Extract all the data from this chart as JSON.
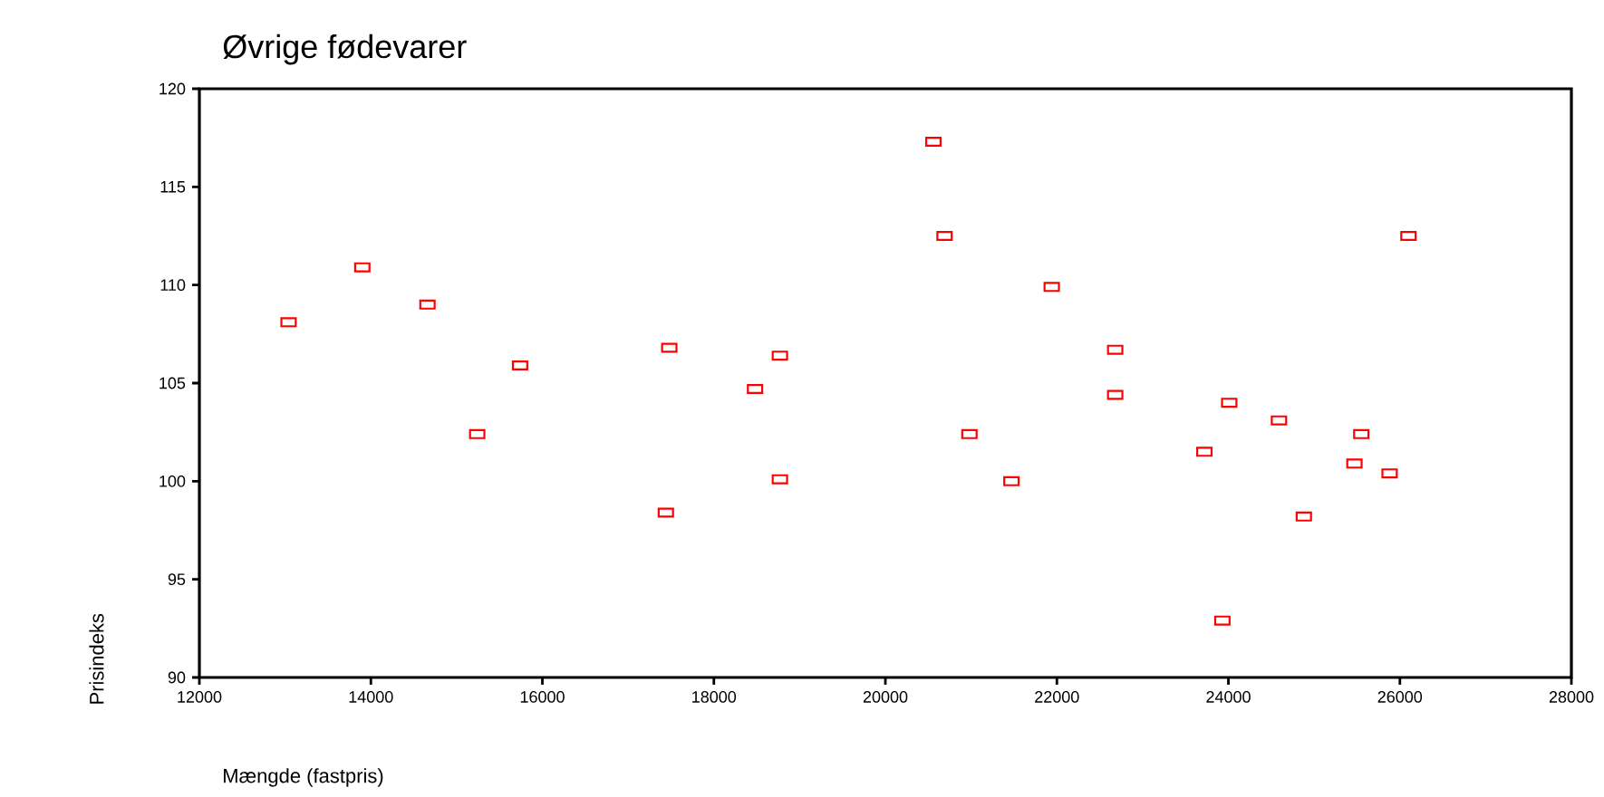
{
  "chart_data": {
    "type": "scatter",
    "title": "Øvrige fødevarer",
    "xlabel": "Mængde  (fastpris)",
    "ylabel": "Prisindeks",
    "xlim": [
      12000,
      28000
    ],
    "xticks": [
      12000,
      14000,
      16000,
      18000,
      20000,
      22000,
      24000,
      26000,
      28000
    ],
    "ylim": [
      90,
      120
    ],
    "yticks": [
      90,
      95,
      100,
      105,
      110,
      115,
      120
    ],
    "marker": "square",
    "color": "#ff0000",
    "x": [
      13040,
      13900,
      14660,
      15740,
      15240,
      17480,
      17440,
      18480,
      18770,
      18770,
      20560,
      20690,
      20980,
      21470,
      21940,
      22680,
      22680,
      23720,
      24010,
      23930,
      24590,
      24880,
      25550,
      25470,
      25880,
      26100
    ],
    "values": [
      108.1,
      110.9,
      109.0,
      105.9,
      102.4,
      106.8,
      98.4,
      104.7,
      106.4,
      100.1,
      117.3,
      112.5,
      102.4,
      100.0,
      109.9,
      106.7,
      104.4,
      101.5,
      104.0,
      92.9,
      103.1,
      98.2,
      102.4,
      100.9,
      100.4,
      112.5
    ]
  }
}
